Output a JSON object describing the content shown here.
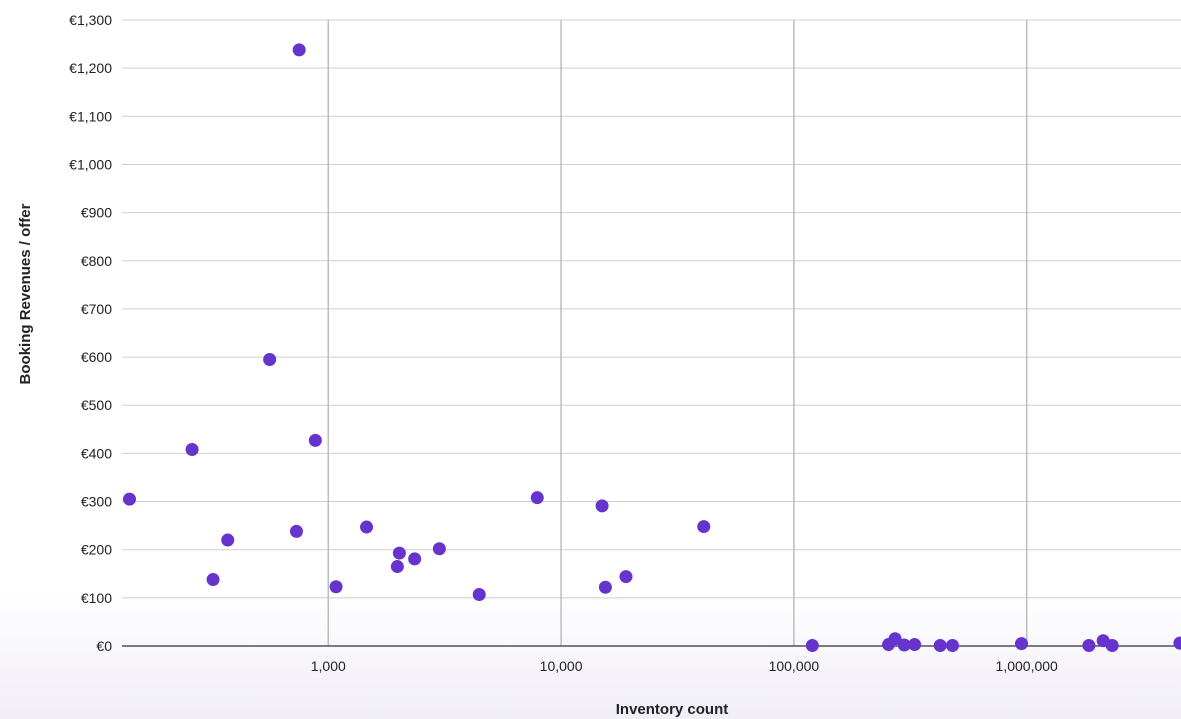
{
  "chart_data": {
    "type": "scatter",
    "title": "",
    "xlabel": "Inventory count",
    "ylabel": "Booking Revenues / offer",
    "x_scale": "log",
    "xlim": [
      130,
      4600000
    ],
    "ylim": [
      0,
      1300
    ],
    "x_ticks": [
      1000,
      10000,
      100000,
      1000000
    ],
    "x_tick_labels": [
      "1,000",
      "10,000",
      "100,000",
      "1,000,000"
    ],
    "y_ticks": [
      0,
      100,
      200,
      300,
      400,
      500,
      600,
      700,
      800,
      900,
      1000,
      1100,
      1200,
      1300
    ],
    "y_tick_labels": [
      "€0",
      "€100",
      "€200",
      "€300",
      "€400",
      "€500",
      "€600",
      "€700",
      "€800",
      "€900",
      "€1,000",
      "€1,100",
      "€1,200",
      "€1,300"
    ],
    "grid": true,
    "marker_color": "#6633cc",
    "series": [
      {
        "points": [
          {
            "x": 140,
            "y": 305
          },
          {
            "x": 260,
            "y": 408
          },
          {
            "x": 320,
            "y": 138
          },
          {
            "x": 370,
            "y": 220
          },
          {
            "x": 560,
            "y": 595
          },
          {
            "x": 730,
            "y": 238
          },
          {
            "x": 750,
            "y": 1238
          },
          {
            "x": 880,
            "y": 427
          },
          {
            "x": 1080,
            "y": 123
          },
          {
            "x": 1460,
            "y": 247
          },
          {
            "x": 1980,
            "y": 165
          },
          {
            "x": 2020,
            "y": 193
          },
          {
            "x": 2350,
            "y": 181
          },
          {
            "x": 3000,
            "y": 202
          },
          {
            "x": 4450,
            "y": 107
          },
          {
            "x": 7900,
            "y": 308
          },
          {
            "x": 15000,
            "y": 291
          },
          {
            "x": 15500,
            "y": 122
          },
          {
            "x": 19000,
            "y": 144
          },
          {
            "x": 41000,
            "y": 248
          },
          {
            "x": 120000,
            "y": 1
          },
          {
            "x": 255000,
            "y": 3
          },
          {
            "x": 272000,
            "y": 15
          },
          {
            "x": 298000,
            "y": 2
          },
          {
            "x": 330000,
            "y": 3
          },
          {
            "x": 425000,
            "y": 1
          },
          {
            "x": 480000,
            "y": 1
          },
          {
            "x": 950000,
            "y": 5
          },
          {
            "x": 1850000,
            "y": 1
          },
          {
            "x": 2130000,
            "y": 11
          },
          {
            "x": 2330000,
            "y": 1
          },
          {
            "x": 4550000,
            "y": 6
          }
        ]
      }
    ]
  }
}
